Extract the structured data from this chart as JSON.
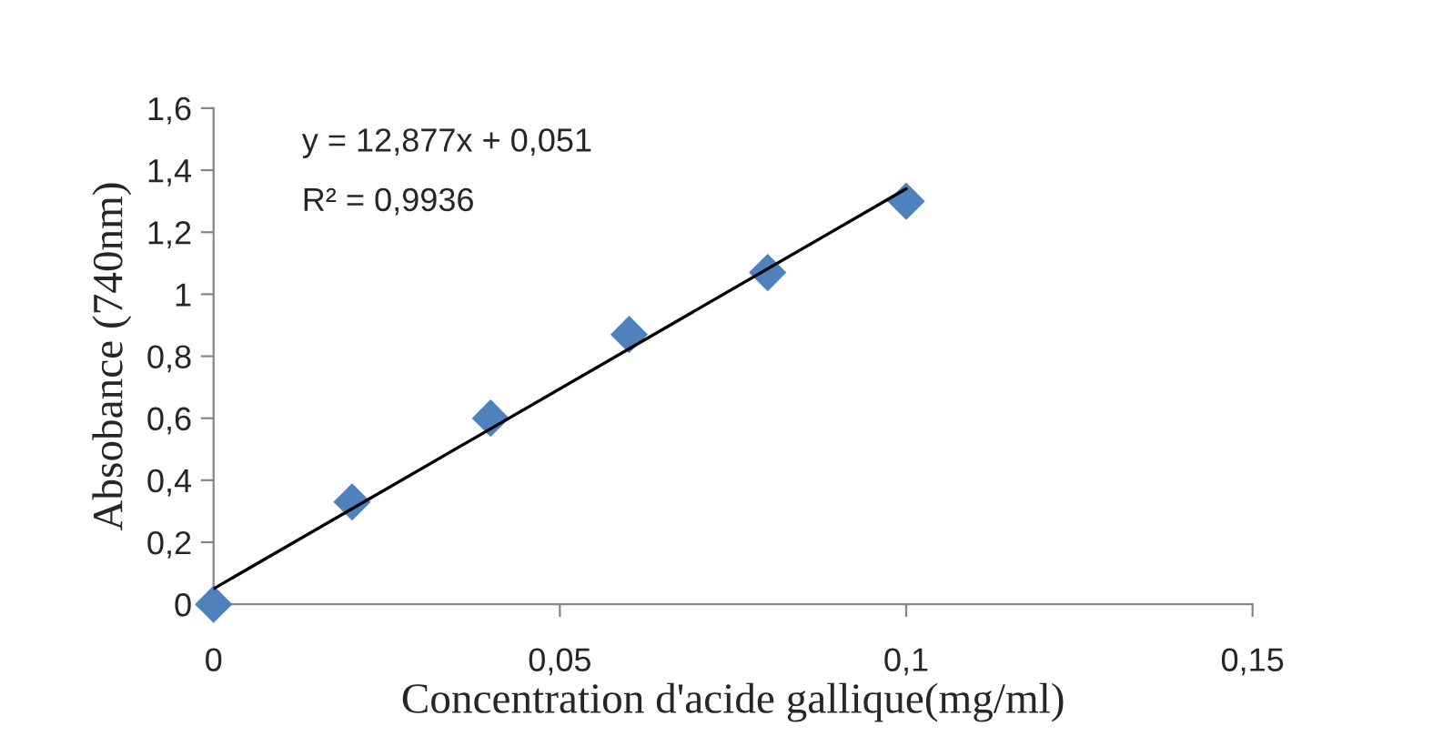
{
  "chart_data": {
    "type": "scatter",
    "xlabel": "Concentration d'acide gallique(mg/ml)",
    "ylabel": "Absobance (740nm)",
    "x": [
      0,
      0.02,
      0.04,
      0.06,
      0.08,
      0.1
    ],
    "series": [
      {
        "color": "#4f81bd",
        "marker": "diamond",
        "values": [
          0,
          0.33,
          0.6,
          0.87,
          1.07,
          1.3
        ]
      },
      {
        "type": "line",
        "color": "#000000",
        "marker": "none",
        "line_style": "solid",
        "x": [
          0,
          0.1
        ],
        "values": [
          0.05,
          1.34
        ]
      }
    ],
    "annotations": [
      "y = 12,877x + 0,051",
      "R² = 0,9936"
    ],
    "xlim": [
      0,
      0.15
    ],
    "xticks": [
      0,
      {
        "value": 0.05,
        "label": "0,05"
      },
      {
        "value": 0.1,
        "label": "0,1"
      },
      {
        "value": 0.15,
        "label": "0,15"
      }
    ],
    "ylim": [
      0,
      1.6
    ],
    "yticks": [
      0,
      {
        "value": 0.2,
        "label": "0,2"
      },
      {
        "value": 0.4,
        "label": "0,4"
      },
      {
        "value": 0.6,
        "label": "0,6"
      },
      {
        "value": 0.8,
        "label": "0,8"
      },
      1,
      {
        "value": 1.2,
        "label": "1,2"
      },
      {
        "value": 1.4,
        "label": "1,4"
      },
      {
        "value": 1.6,
        "label": "1,6"
      }
    ],
    "grid": false
  }
}
